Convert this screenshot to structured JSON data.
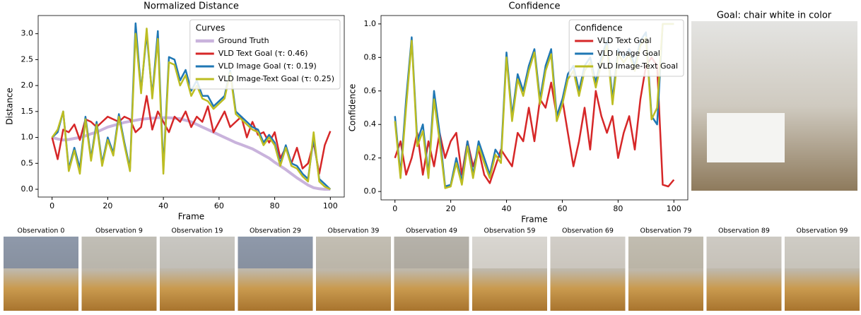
{
  "chart_data": [
    {
      "type": "line",
      "title": "Normalized Distance",
      "xlabel": "Frame",
      "ylabel": "Distance",
      "legend_title": "Curves",
      "legend": "upper right",
      "x": [
        0,
        2,
        4,
        6,
        8,
        10,
        12,
        14,
        16,
        18,
        20,
        22,
        24,
        26,
        28,
        30,
        32,
        34,
        36,
        38,
        40,
        42,
        44,
        46,
        48,
        50,
        52,
        54,
        56,
        58,
        60,
        62,
        64,
        66,
        68,
        70,
        72,
        74,
        76,
        78,
        80,
        82,
        84,
        86,
        88,
        90,
        92,
        94,
        96,
        98,
        100
      ],
      "xlim": [
        -5,
        105
      ],
      "xticks": [
        0,
        20,
        40,
        60,
        80,
        100
      ],
      "ylim": [
        -0.15,
        3.35
      ],
      "yticks": [
        {
          "value": 0,
          "label": "0.0"
        },
        {
          "value": 0.5,
          "label": "0.5"
        },
        {
          "value": 1,
          "label": "1.0"
        },
        {
          "value": 1.5,
          "label": "1.5"
        },
        {
          "value": 2,
          "label": "2.0"
        },
        {
          "value": 2.5,
          "label": "2.5"
        },
        {
          "value": 3,
          "label": "3.0"
        }
      ],
      "series": [
        {
          "name": "Ground Truth",
          "color": "#c9b3dc",
          "width": 4,
          "values": [
            1.0,
            0.97,
            0.95,
            0.96,
            0.98,
            1.0,
            1.03,
            1.07,
            1.1,
            1.15,
            1.2,
            1.23,
            1.26,
            1.29,
            1.31,
            1.33,
            1.35,
            1.36,
            1.37,
            1.38,
            1.38,
            1.38,
            1.37,
            1.36,
            1.33,
            1.3,
            1.25,
            1.2,
            1.15,
            1.1,
            1.05,
            1.0,
            0.95,
            0.9,
            0.86,
            0.82,
            0.78,
            0.72,
            0.66,
            0.6,
            0.52,
            0.45,
            0.38,
            0.3,
            0.22,
            0.15,
            0.08,
            0.03,
            0.01,
            0.0,
            0.0
          ]
        },
        {
          "name": "VLD Text Goal (τ: 0.46)",
          "color": "#d62728",
          "width": 2.5,
          "values": [
            1.0,
            0.58,
            1.15,
            1.1,
            1.25,
            0.95,
            1.35,
            1.3,
            1.2,
            1.3,
            1.4,
            1.35,
            1.3,
            1.4,
            1.35,
            1.1,
            1.2,
            1.8,
            1.15,
            1.5,
            1.3,
            1.1,
            1.4,
            1.3,
            1.5,
            1.2,
            1.4,
            1.3,
            1.6,
            1.1,
            1.3,
            1.5,
            1.2,
            1.3,
            1.4,
            1.0,
            1.3,
            1.05,
            1.1,
            0.9,
            1.1,
            0.6,
            0.8,
            0.5,
            0.8,
            0.4,
            0.5,
            0.9,
            0.3,
            0.85,
            1.12
          ]
        },
        {
          "name": "VLD Image Goal (τ: 0.19)",
          "color": "#1f77b4",
          "width": 2.5,
          "values": [
            1.0,
            1.1,
            1.5,
            0.4,
            0.8,
            0.4,
            1.4,
            0.6,
            1.3,
            0.5,
            1.0,
            0.7,
            1.45,
            0.9,
            0.4,
            3.2,
            1.9,
            3.0,
            1.8,
            3.05,
            0.4,
            2.55,
            2.5,
            2.1,
            2.3,
            1.9,
            2.1,
            1.8,
            1.8,
            1.6,
            1.7,
            1.8,
            2.3,
            1.5,
            1.4,
            1.3,
            1.2,
            1.15,
            0.9,
            1.05,
            0.9,
            0.5,
            0.85,
            0.5,
            0.45,
            0.3,
            0.2,
            1.0,
            0.2,
            0.1,
            0.0
          ]
        },
        {
          "name": "VLD Image-Text Goal (τ: 0.25)",
          "color": "#bcbd22",
          "width": 2.5,
          "values": [
            1.0,
            1.15,
            1.5,
            0.35,
            0.75,
            0.3,
            1.35,
            0.55,
            1.25,
            0.45,
            0.95,
            0.65,
            1.4,
            0.85,
            0.35,
            3.0,
            1.85,
            3.1,
            1.75,
            2.9,
            0.3,
            2.45,
            2.4,
            2.0,
            2.2,
            1.8,
            2.0,
            1.75,
            1.7,
            1.55,
            1.65,
            1.75,
            2.25,
            1.45,
            1.35,
            1.25,
            1.15,
            1.1,
            0.85,
            1.0,
            0.85,
            0.45,
            0.8,
            0.45,
            0.4,
            0.25,
            0.15,
            1.1,
            0.15,
            0.05,
            0.0
          ]
        }
      ]
    },
    {
      "type": "line",
      "title": "Confidence",
      "xlabel": "Frame",
      "ylabel": "Confidence",
      "legend_title": "Confidence",
      "legend": "upper right",
      "x": [
        0,
        2,
        4,
        6,
        8,
        10,
        12,
        14,
        16,
        18,
        20,
        22,
        24,
        26,
        28,
        30,
        32,
        34,
        36,
        38,
        40,
        42,
        44,
        46,
        48,
        50,
        52,
        54,
        56,
        58,
        60,
        62,
        64,
        66,
        68,
        70,
        72,
        74,
        76,
        78,
        80,
        82,
        84,
        86,
        88,
        90,
        92,
        94,
        96,
        98,
        100
      ],
      "xlim": [
        -5,
        105
      ],
      "xticks": [
        0,
        20,
        40,
        60,
        80,
        100
      ],
      "ylim": [
        -0.05,
        1.05
      ],
      "yticks": [
        {
          "value": 0,
          "label": "0.0"
        },
        {
          "value": 0.2,
          "label": "0.2"
        },
        {
          "value": 0.4,
          "label": "0.4"
        },
        {
          "value": 0.6,
          "label": "0.6"
        },
        {
          "value": 0.8,
          "label": "0.8"
        },
        {
          "value": 1,
          "label": "1.0"
        }
      ],
      "series": [
        {
          "name": "VLD Text Goal",
          "color": "#d62728",
          "width": 2.5,
          "values": [
            0.2,
            0.3,
            0.1,
            0.2,
            0.35,
            0.1,
            0.3,
            0.15,
            0.35,
            0.2,
            0.3,
            0.35,
            0.1,
            0.3,
            0.15,
            0.25,
            0.1,
            0.05,
            0.15,
            0.25,
            0.2,
            0.15,
            0.35,
            0.3,
            0.5,
            0.3,
            0.55,
            0.5,
            0.65,
            0.45,
            0.55,
            0.35,
            0.15,
            0.3,
            0.5,
            0.25,
            0.6,
            0.45,
            0.35,
            0.45,
            0.2,
            0.35,
            0.45,
            0.25,
            0.55,
            0.75,
            0.8,
            0.75,
            0.04,
            0.03,
            0.07
          ]
        },
        {
          "name": "VLD Image Goal",
          "color": "#1f77b4",
          "width": 2.5,
          "values": [
            0.45,
            0.1,
            0.55,
            0.92,
            0.3,
            0.4,
            0.1,
            0.6,
            0.35,
            0.03,
            0.04,
            0.2,
            0.06,
            0.3,
            0.1,
            0.3,
            0.2,
            0.1,
            0.25,
            0.2,
            0.83,
            0.45,
            0.7,
            0.6,
            0.75,
            0.85,
            0.55,
            0.75,
            0.85,
            0.45,
            0.55,
            0.7,
            0.75,
            0.6,
            0.75,
            0.8,
            0.65,
            0.8,
            0.9,
            0.55,
            0.85,
            0.8,
            0.85,
            0.75,
            0.9,
            0.95,
            0.45,
            0.4,
            1.0,
            1.0,
            1.0
          ]
        },
        {
          "name": "VLD Image-Text Goal",
          "color": "#bcbd22",
          "width": 2.5,
          "values": [
            0.42,
            0.08,
            0.5,
            0.9,
            0.27,
            0.36,
            0.08,
            0.55,
            0.3,
            0.02,
            0.03,
            0.17,
            0.04,
            0.27,
            0.08,
            0.27,
            0.17,
            0.08,
            0.22,
            0.17,
            0.8,
            0.42,
            0.67,
            0.57,
            0.72,
            0.83,
            0.52,
            0.72,
            0.82,
            0.42,
            0.52,
            0.67,
            0.72,
            0.57,
            0.72,
            0.77,
            0.62,
            0.77,
            0.87,
            0.52,
            0.82,
            0.77,
            0.82,
            0.72,
            0.87,
            0.92,
            0.43,
            0.5,
            1.0,
            1.0,
            1.0
          ]
        }
      ]
    }
  ],
  "goal": {
    "title": "Goal: chair white in color"
  },
  "observations": [
    "Observation 0",
    "Observation 9",
    "Observation 19",
    "Observation 29",
    "Observation 39",
    "Observation 49",
    "Observation 59",
    "Observation 69",
    "Observation 79",
    "Observation 89",
    "Observation 99"
  ]
}
